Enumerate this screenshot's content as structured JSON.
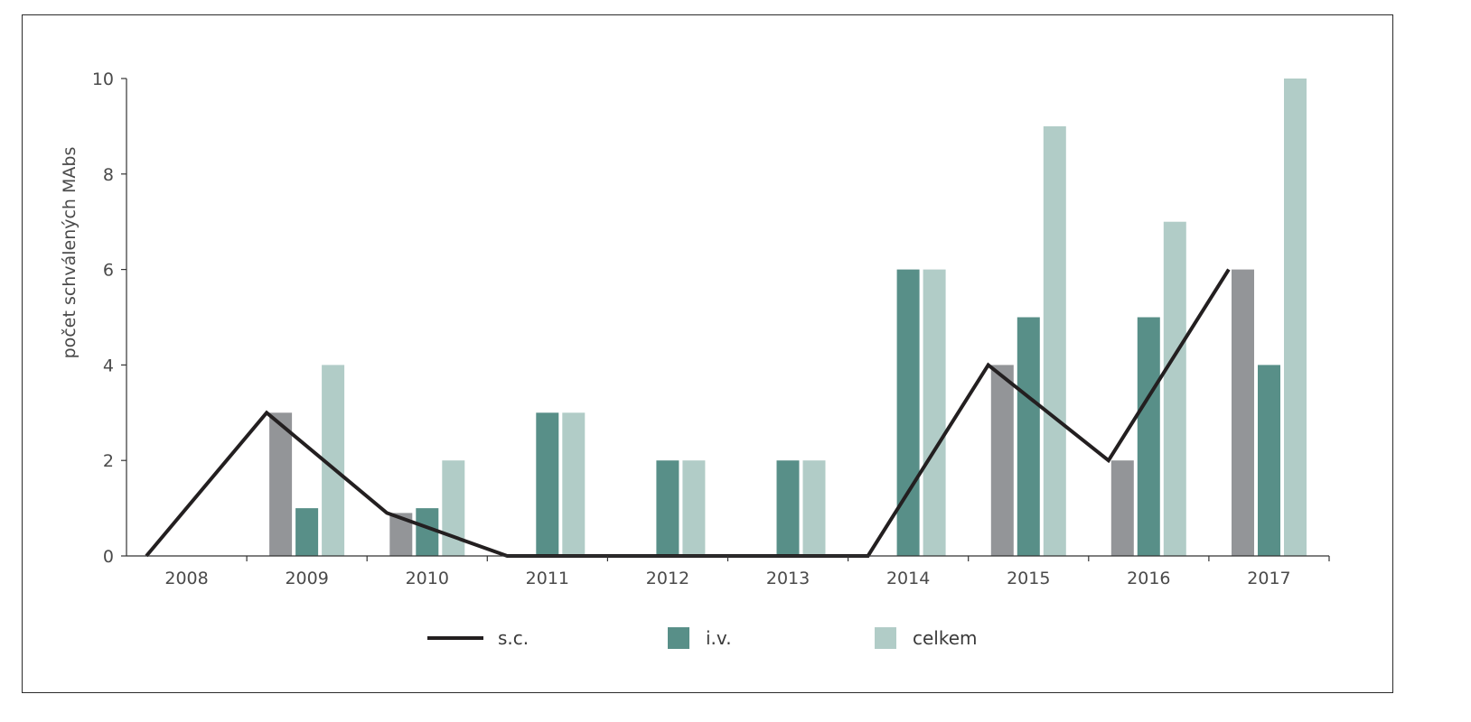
{
  "chart_data": {
    "type": "bar",
    "title": "",
    "xlabel": "",
    "ylabel": "počet schválených MAbs",
    "ylim": [
      0,
      10
    ],
    "yticks": [
      0,
      2,
      4,
      6,
      8,
      10
    ],
    "grid": false,
    "legend_position": "bottom",
    "categories": [
      "2008",
      "2009",
      "2010",
      "2011",
      "2012",
      "2013",
      "2014",
      "2015",
      "2016",
      "2017"
    ],
    "series": [
      {
        "name": "",
        "type": "bar",
        "color": "#939598",
        "values": [
          0,
          3,
          0.9,
          0,
          0,
          0,
          0,
          4,
          2,
          6
        ]
      },
      {
        "name": "i.v.",
        "type": "bar",
        "color": "#588f88",
        "values": [
          0,
          1,
          1,
          3,
          2,
          2,
          6,
          5,
          5,
          4
        ]
      },
      {
        "name": "celkem",
        "type": "bar",
        "color": "#b1ccc7",
        "values": [
          0,
          4,
          2,
          3,
          2,
          2,
          6,
          9,
          7,
          10
        ]
      },
      {
        "name": "s.c.",
        "type": "line",
        "color": "#231f20",
        "values": [
          0,
          3,
          0.9,
          0,
          0,
          0,
          0,
          4,
          2,
          6
        ]
      }
    ],
    "legend": [
      {
        "label": "s.c.",
        "kind": "line",
        "color": "#231f20"
      },
      {
        "label": "i.v.",
        "kind": "bar",
        "color": "#588f88"
      },
      {
        "label": "celkem",
        "kind": "bar",
        "color": "#b1ccc7"
      }
    ]
  }
}
